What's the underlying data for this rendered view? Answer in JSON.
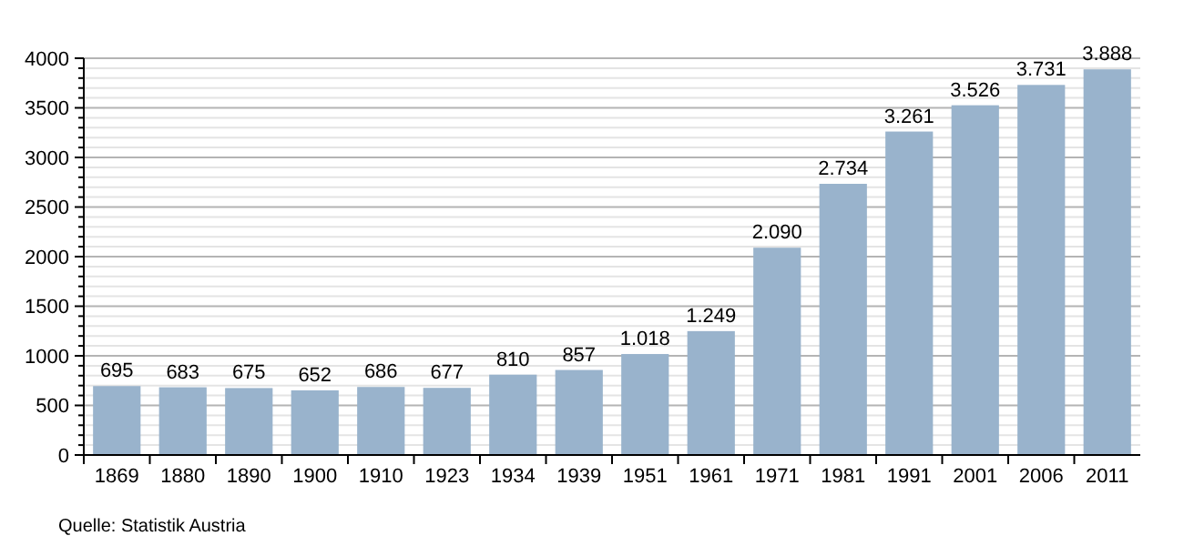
{
  "chart_data": {
    "type": "bar",
    "categories": [
      "1869",
      "1880",
      "1890",
      "1900",
      "1910",
      "1923",
      "1934",
      "1939",
      "1951",
      "1961",
      "1971",
      "1981",
      "1991",
      "2001",
      "2006",
      "2011"
    ],
    "values": [
      695,
      683,
      675,
      652,
      686,
      677,
      810,
      857,
      1018,
      1249,
      2090,
      2734,
      3261,
      3526,
      3731,
      3888
    ],
    "value_labels": [
      "695",
      "683",
      "675",
      "652",
      "686",
      "677",
      "810",
      "857",
      "1.018",
      "1.249",
      "2.090",
      "2.734",
      "3.261",
      "3.526",
      "3.731",
      "3.888"
    ],
    "color": "#99b3cc",
    "ylim": [
      0,
      4000
    ],
    "yticks": [
      0,
      {
        "value": 100,
        "label": null
      },
      {
        "value": 200,
        "label": null
      },
      {
        "value": 300,
        "label": null
      },
      {
        "value": 400,
        "label": null
      },
      500,
      {
        "value": 600,
        "label": null
      },
      {
        "value": 700,
        "label": null
      },
      {
        "value": 800,
        "label": null
      },
      {
        "value": 900,
        "label": null
      },
      1000,
      {
        "value": 1100,
        "label": null
      },
      {
        "value": 1200,
        "label": null
      },
      {
        "value": 1300,
        "label": null
      },
      {
        "value": 1400,
        "label": null
      },
      1500,
      {
        "value": 1600,
        "label": null
      },
      {
        "value": 1700,
        "label": null
      },
      {
        "value": 1800,
        "label": null
      },
      {
        "value": 1900,
        "label": null
      },
      2000,
      {
        "value": 2100,
        "label": null
      },
      {
        "value": 2200,
        "label": null
      },
      {
        "value": 2300,
        "label": null
      },
      {
        "value": 2400,
        "label": null
      },
      2500,
      {
        "value": 2600,
        "label": null
      },
      {
        "value": 2700,
        "label": null
      },
      {
        "value": 2800,
        "label": null
      },
      {
        "value": 2900,
        "label": null
      },
      3000,
      {
        "value": 3100,
        "label": null
      },
      {
        "value": 3200,
        "label": null
      },
      {
        "value": 3300,
        "label": null
      },
      {
        "value": 3400,
        "label": null
      },
      3500,
      {
        "value": 3600,
        "label": null
      },
      {
        "value": 3700,
        "label": null
      },
      {
        "value": 3800,
        "label": null
      },
      {
        "value": 3900,
        "label": null
      },
      4000
    ],
    "grid": "y",
    "annotations": [
      "Quelle: Statistik Austria"
    ]
  }
}
